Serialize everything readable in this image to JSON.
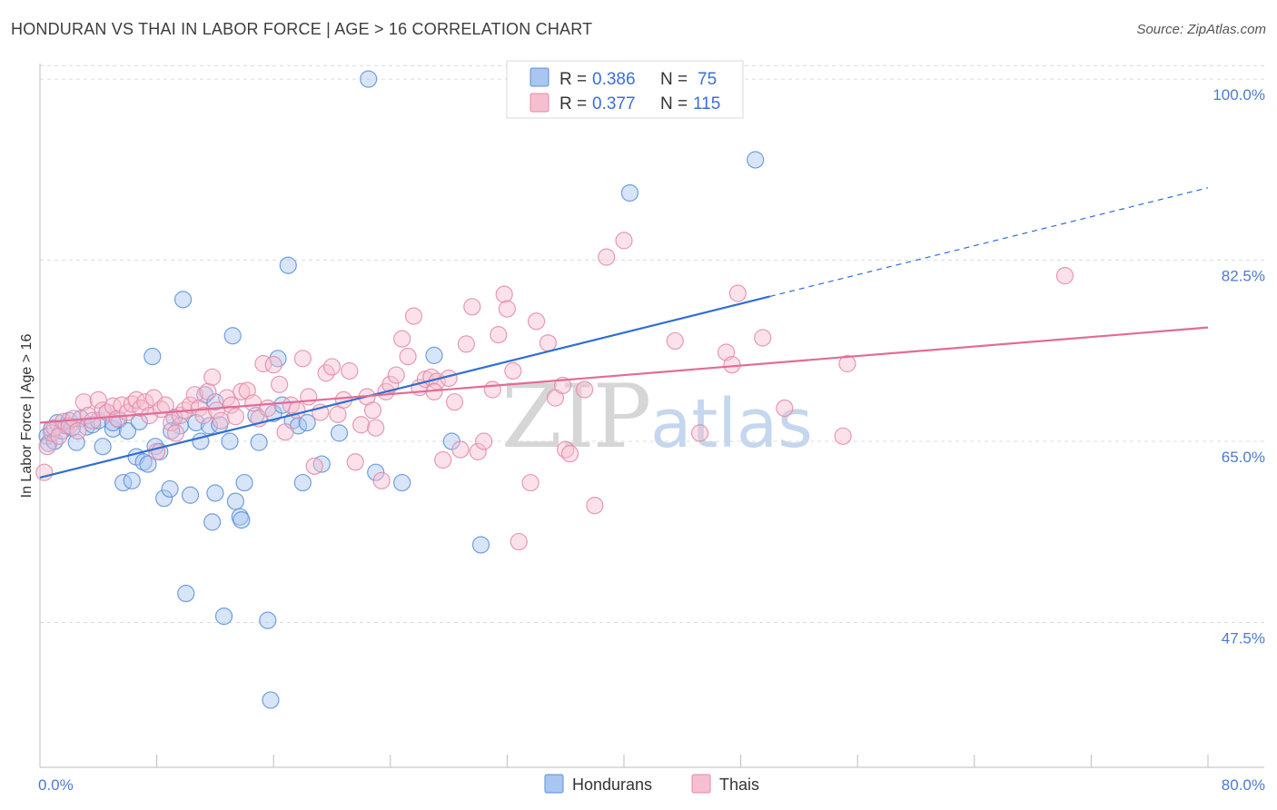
{
  "header": {
    "title": "HONDURAN VS THAI IN LABOR FORCE | AGE > 16 CORRELATION CHART",
    "source": "Source: ZipAtlas.com"
  },
  "watermark": {
    "zip": "ZIP",
    "atlas": "atlas"
  },
  "legend": {
    "r_label": "R =",
    "n_label": "N =",
    "items": [
      {
        "r": "0.386",
        "n": "75",
        "color": "#a9c6f0",
        "stroke": "#5b8fd8"
      },
      {
        "r": "0.377",
        "n": "115",
        "color": "#f6bfd0",
        "stroke": "#e38aa6"
      }
    ]
  },
  "bottom_legend": [
    {
      "label": "Hondurans",
      "color": "#a9c6f0",
      "stroke": "#5b8fd8"
    },
    {
      "label": "Thais",
      "color": "#f6bfd0",
      "stroke": "#e38aa6"
    }
  ],
  "chart_data": {
    "type": "scatter",
    "title": "HONDURAN VS THAI IN LABOR FORCE | AGE > 16 CORRELATION CHART",
    "xlabel": "",
    "ylabel": "In Labor Force | Age > 16",
    "xlim": [
      0,
      80
    ],
    "ylim": [
      33.5,
      101.5
    ],
    "x_tick_labels": [
      {
        "value": 0,
        "label": "0.0%"
      },
      {
        "value": 80,
        "label": "80.0%"
      }
    ],
    "y_ticks": [
      {
        "value": 100,
        "label": "100.0%"
      },
      {
        "value": 82.5,
        "label": "82.5%"
      },
      {
        "value": 65,
        "label": "65.0%"
      },
      {
        "value": 47.5,
        "label": "47.5%"
      }
    ],
    "x_minor_ticks": [
      0,
      8,
      16,
      24,
      32,
      40,
      48,
      56,
      64,
      72,
      80
    ],
    "grid": true,
    "legend_position": "top-center",
    "series": [
      {
        "name": "Hondurans",
        "color": "#a9c6f0",
        "stroke": "#5b8fd8",
        "line_color": "#2f6fd0",
        "trend": {
          "x0": 0,
          "y0": 61.5,
          "x1": 50,
          "y1": 79.0,
          "dash_to_x": 80,
          "dash_to_y": 89.5
        },
        "points": [
          [
            0.5,
            65.5
          ],
          [
            0.6,
            64.8
          ],
          [
            0.8,
            66.2
          ],
          [
            1.0,
            65.0
          ],
          [
            1.2,
            66.8
          ],
          [
            1.5,
            66.0
          ],
          [
            1.8,
            66.5
          ],
          [
            2.0,
            67.0
          ],
          [
            2.5,
            64.9
          ],
          [
            2.8,
            67.2
          ],
          [
            3.2,
            66.4
          ],
          [
            3.6,
            66.6
          ],
          [
            4.0,
            67.0
          ],
          [
            4.3,
            64.5
          ],
          [
            4.6,
            67.8
          ],
          [
            5.0,
            66.2
          ],
          [
            5.4,
            67.1
          ],
          [
            5.7,
            61.0
          ],
          [
            6.0,
            66.0
          ],
          [
            6.3,
            61.2
          ],
          [
            6.6,
            63.5
          ],
          [
            6.8,
            66.9
          ],
          [
            7.1,
            63.0
          ],
          [
            7.4,
            62.8
          ],
          [
            7.7,
            73.2
          ],
          [
            7.9,
            64.5
          ],
          [
            8.2,
            64.0
          ],
          [
            8.5,
            59.5
          ],
          [
            8.9,
            60.4
          ],
          [
            9.2,
            67.3
          ],
          [
            9.6,
            66.5
          ],
          [
            9.8,
            78.7
          ],
          [
            10.0,
            50.3
          ],
          [
            10.3,
            59.8
          ],
          [
            10.7,
            66.8
          ],
          [
            11.0,
            65.0
          ],
          [
            11.3,
            69.5
          ],
          [
            11.6,
            66.5
          ],
          [
            11.8,
            57.2
          ],
          [
            12.0,
            60.0
          ],
          [
            12.3,
            66.6
          ],
          [
            12.6,
            48.1
          ],
          [
            13.0,
            65.0
          ],
          [
            13.2,
            75.2
          ],
          [
            13.4,
            59.2
          ],
          [
            13.7,
            57.7
          ],
          [
            13.8,
            57.4
          ],
          [
            14.0,
            61.0
          ],
          [
            15.0,
            64.9
          ],
          [
            15.6,
            47.7
          ],
          [
            15.8,
            40.0
          ],
          [
            16.0,
            67.7
          ],
          [
            16.3,
            73.0
          ],
          [
            16.6,
            68.5
          ],
          [
            17.0,
            82.0
          ],
          [
            17.3,
            67.0
          ],
          [
            17.7,
            66.5
          ],
          [
            18.0,
            61.0
          ],
          [
            18.3,
            66.8
          ],
          [
            19.3,
            62.8
          ],
          [
            20.5,
            65.8
          ],
          [
            23.0,
            62.0
          ],
          [
            24.8,
            61.0
          ],
          [
            27.0,
            73.3
          ],
          [
            28.2,
            65.0
          ],
          [
            30.2,
            55.0
          ],
          [
            40.4,
            89.0
          ],
          [
            41.8,
            100.0
          ],
          [
            49.0,
            92.2
          ],
          [
            22.5,
            100.0
          ],
          [
            2.2,
            66.3
          ],
          [
            5.0,
            66.8
          ],
          [
            9.0,
            66.0
          ],
          [
            12.0,
            68.8
          ],
          [
            14.8,
            67.5
          ]
        ]
      },
      {
        "name": "Thais",
        "color": "#f6bfd0",
        "stroke": "#e38aa6",
        "line_color": "#e16c96",
        "trend": {
          "x0": 0,
          "y0": 66.8,
          "x1": 80,
          "y1": 76.0
        },
        "points": [
          [
            0.3,
            62.0
          ],
          [
            0.5,
            64.5
          ],
          [
            0.8,
            65.8
          ],
          [
            1.0,
            66.3
          ],
          [
            1.3,
            65.5
          ],
          [
            1.6,
            66.9
          ],
          [
            2.0,
            66.5
          ],
          [
            2.3,
            67.2
          ],
          [
            2.6,
            66.0
          ],
          [
            3.0,
            68.8
          ],
          [
            3.3,
            67.5
          ],
          [
            3.6,
            67.0
          ],
          [
            4.0,
            69.0
          ],
          [
            4.3,
            68.0
          ],
          [
            4.6,
            67.8
          ],
          [
            5.0,
            68.4
          ],
          [
            5.3,
            67.2
          ],
          [
            5.6,
            68.5
          ],
          [
            6.0,
            67.8
          ],
          [
            6.3,
            68.6
          ],
          [
            6.6,
            69.0
          ],
          [
            6.9,
            68.2
          ],
          [
            7.2,
            68.8
          ],
          [
            7.5,
            67.5
          ],
          [
            7.8,
            69.2
          ],
          [
            8.0,
            64.0
          ],
          [
            8.3,
            68.1
          ],
          [
            8.6,
            68.5
          ],
          [
            9.0,
            66.8
          ],
          [
            9.3,
            65.8
          ],
          [
            9.6,
            67.5
          ],
          [
            9.9,
            68.0
          ],
          [
            10.3,
            68.5
          ],
          [
            10.6,
            69.5
          ],
          [
            10.9,
            68.2
          ],
          [
            11.2,
            67.5
          ],
          [
            11.5,
            69.8
          ],
          [
            11.8,
            71.2
          ],
          [
            12.1,
            68.0
          ],
          [
            12.4,
            67.0
          ],
          [
            12.8,
            69.2
          ],
          [
            13.1,
            68.5
          ],
          [
            13.4,
            67.4
          ],
          [
            13.8,
            69.8
          ],
          [
            14.2,
            69.9
          ],
          [
            14.6,
            68.7
          ],
          [
            15.0,
            67.2
          ],
          [
            15.3,
            72.5
          ],
          [
            15.6,
            68.2
          ],
          [
            16.0,
            72.4
          ],
          [
            16.4,
            70.5
          ],
          [
            16.8,
            65.9
          ],
          [
            17.2,
            68.5
          ],
          [
            17.6,
            68.0
          ],
          [
            18.0,
            73.0
          ],
          [
            18.4,
            69.3
          ],
          [
            18.8,
            62.6
          ],
          [
            19.2,
            67.8
          ],
          [
            19.6,
            71.6
          ],
          [
            20.0,
            72.2
          ],
          [
            20.4,
            67.6
          ],
          [
            20.8,
            69.0
          ],
          [
            21.2,
            71.8
          ],
          [
            21.6,
            63.0
          ],
          [
            22.0,
            66.6
          ],
          [
            22.4,
            69.3
          ],
          [
            22.8,
            68.0
          ],
          [
            23.0,
            66.3
          ],
          [
            23.4,
            61.2
          ],
          [
            23.7,
            69.8
          ],
          [
            24.0,
            70.5
          ],
          [
            24.4,
            71.4
          ],
          [
            24.8,
            74.9
          ],
          [
            25.2,
            73.2
          ],
          [
            25.6,
            77.1
          ],
          [
            26.0,
            70.2
          ],
          [
            26.4,
            71.0
          ],
          [
            26.8,
            71.2
          ],
          [
            27.2,
            70.8
          ],
          [
            27.6,
            63.2
          ],
          [
            28.0,
            71.1
          ],
          [
            28.4,
            68.8
          ],
          [
            28.8,
            64.2
          ],
          [
            29.2,
            74.4
          ],
          [
            29.6,
            78.0
          ],
          [
            30.0,
            64.0
          ],
          [
            30.4,
            65.0
          ],
          [
            31.0,
            70.0
          ],
          [
            31.4,
            75.3
          ],
          [
            31.8,
            79.2
          ],
          [
            32.0,
            77.8
          ],
          [
            32.4,
            71.8
          ],
          [
            32.8,
            55.3
          ],
          [
            33.6,
            61.0
          ],
          [
            34.0,
            76.6
          ],
          [
            34.8,
            74.5
          ],
          [
            35.3,
            69.2
          ],
          [
            35.8,
            70.4
          ],
          [
            36.0,
            64.2
          ],
          [
            36.3,
            63.8
          ],
          [
            37.3,
            70.0
          ],
          [
            38.0,
            58.8
          ],
          [
            38.8,
            82.8
          ],
          [
            40.0,
            84.4
          ],
          [
            43.5,
            74.7
          ],
          [
            45.2,
            65.8
          ],
          [
            47.0,
            73.6
          ],
          [
            47.4,
            72.4
          ],
          [
            47.8,
            79.3
          ],
          [
            49.5,
            75.0
          ],
          [
            51.0,
            68.2
          ],
          [
            55.0,
            65.5
          ],
          [
            55.3,
            72.5
          ],
          [
            70.2,
            81.0
          ],
          [
            27.0,
            69.8
          ]
        ]
      }
    ]
  }
}
